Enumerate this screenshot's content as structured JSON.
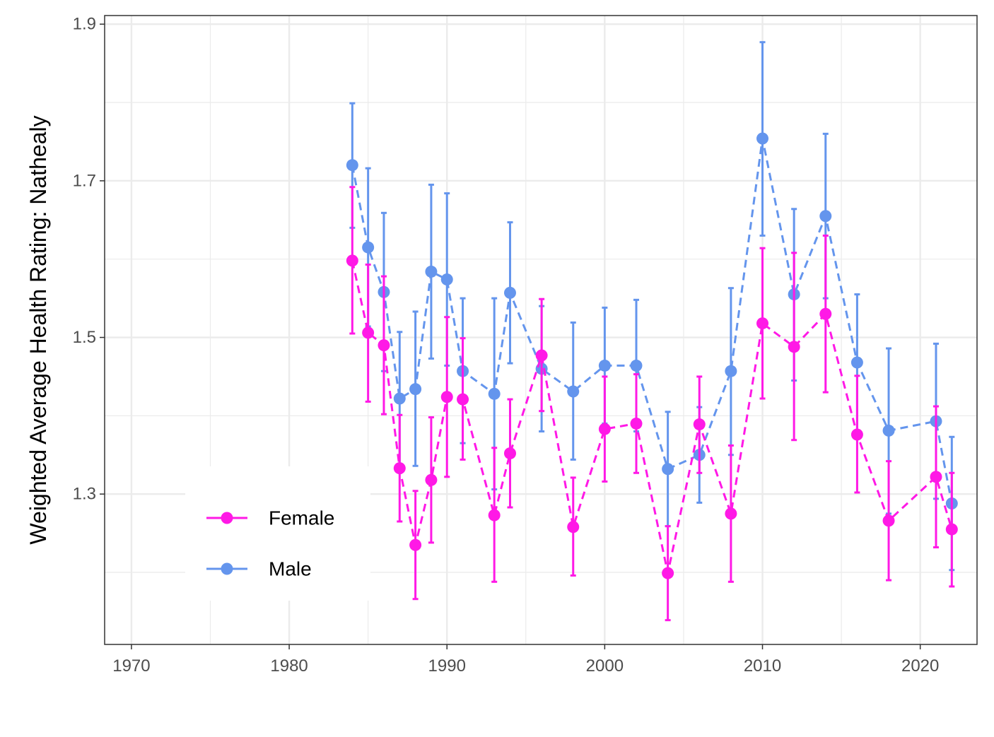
{
  "chart_data": {
    "type": "line",
    "title": "",
    "xlabel": "",
    "ylabel": "Weighted Average Health Rating: Nathealy",
    "xlim": [
      1969.4,
      1974.9
    ],
    "ylim": [
      1.108,
      1.911
    ],
    "x_ticks": [
      "1970",
      "1980",
      "1990",
      "2000",
      "2010",
      "2020"
    ],
    "y_ticks": [
      "1.3",
      "1.5",
      "1.7",
      "1.9"
    ],
    "grid": true,
    "legend_position": "bottom-left",
    "series": [
      {
        "name": "Female",
        "color": "#ff19e6",
        "line_style": "dashed",
        "points": [
          {
            "x": 1984,
            "y": 1.598,
            "lo": 1.505,
            "hi": 1.692
          },
          {
            "x": 1985,
            "y": 1.506,
            "lo": 1.418,
            "hi": 1.593
          },
          {
            "x": 1986,
            "y": 1.49,
            "lo": 1.402,
            "hi": 1.578
          },
          {
            "x": 1987,
            "y": 1.333,
            "lo": 1.265,
            "hi": 1.401
          },
          {
            "x": 1988,
            "y": 1.235,
            "lo": 1.166,
            "hi": 1.304
          },
          {
            "x": 1989,
            "y": 1.318,
            "lo": 1.238,
            "hi": 1.398
          },
          {
            "x": 1990,
            "y": 1.424,
            "lo": 1.322,
            "hi": 1.526
          },
          {
            "x": 1991,
            "y": 1.421,
            "lo": 1.344,
            "hi": 1.499
          },
          {
            "x": 1993,
            "y": 1.273,
            "lo": 1.188,
            "hi": 1.359
          },
          {
            "x": 1994,
            "y": 1.352,
            "lo": 1.283,
            "hi": 1.421
          },
          {
            "x": 1996,
            "y": 1.477,
            "lo": 1.406,
            "hi": 1.549
          },
          {
            "x": 1998,
            "y": 1.258,
            "lo": 1.196,
            "hi": 1.321
          },
          {
            "x": 2000,
            "y": 1.383,
            "lo": 1.316,
            "hi": 1.45
          },
          {
            "x": 2002,
            "y": 1.39,
            "lo": 1.327,
            "hi": 1.453
          },
          {
            "x": 2004,
            "y": 1.199,
            "lo": 1.139,
            "hi": 1.259
          },
          {
            "x": 2006,
            "y": 1.389,
            "lo": 1.327,
            "hi": 1.45
          },
          {
            "x": 2008,
            "y": 1.275,
            "lo": 1.188,
            "hi": 1.362
          },
          {
            "x": 2010,
            "y": 1.518,
            "lo": 1.422,
            "hi": 1.614
          },
          {
            "x": 2012,
            "y": 1.488,
            "lo": 1.369,
            "hi": 1.608
          },
          {
            "x": 2014,
            "y": 1.53,
            "lo": 1.43,
            "hi": 1.63
          },
          {
            "x": 2016,
            "y": 1.376,
            "lo": 1.302,
            "hi": 1.451
          },
          {
            "x": 2018,
            "y": 1.266,
            "lo": 1.19,
            "hi": 1.342
          },
          {
            "x": 2021,
            "y": 1.322,
            "lo": 1.232,
            "hi": 1.412
          },
          {
            "x": 2022,
            "y": 1.255,
            "lo": 1.182,
            "hi": 1.327
          }
        ]
      },
      {
        "name": "Male",
        "color": "#6495ed",
        "line_style": "dashed",
        "points": [
          {
            "x": 1984,
            "y": 1.72,
            "lo": 1.64,
            "hi": 1.799
          },
          {
            "x": 1985,
            "y": 1.615,
            "lo": 1.514,
            "hi": 1.716
          },
          {
            "x": 1986,
            "y": 1.558,
            "lo": 1.457,
            "hi": 1.659
          },
          {
            "x": 1987,
            "y": 1.422,
            "lo": 1.337,
            "hi": 1.507
          },
          {
            "x": 1988,
            "y": 1.434,
            "lo": 1.336,
            "hi": 1.533
          },
          {
            "x": 1989,
            "y": 1.584,
            "lo": 1.473,
            "hi": 1.695
          },
          {
            "x": 1990,
            "y": 1.574,
            "lo": 1.464,
            "hi": 1.684
          },
          {
            "x": 1991,
            "y": 1.457,
            "lo": 1.365,
            "hi": 1.55
          },
          {
            "x": 1993,
            "y": 1.428,
            "lo": 1.306,
            "hi": 1.55
          },
          {
            "x": 1994,
            "y": 1.557,
            "lo": 1.467,
            "hi": 1.647
          },
          {
            "x": 1996,
            "y": 1.46,
            "lo": 1.38,
            "hi": 1.54
          },
          {
            "x": 1998,
            "y": 1.431,
            "lo": 1.344,
            "hi": 1.519
          },
          {
            "x": 2000,
            "y": 1.464,
            "lo": 1.39,
            "hi": 1.538
          },
          {
            "x": 2002,
            "y": 1.464,
            "lo": 1.38,
            "hi": 1.548
          },
          {
            "x": 2004,
            "y": 1.332,
            "lo": 1.259,
            "hi": 1.405
          },
          {
            "x": 2006,
            "y": 1.35,
            "lo": 1.289,
            "hi": 1.411
          },
          {
            "x": 2008,
            "y": 1.457,
            "lo": 1.35,
            "hi": 1.563
          },
          {
            "x": 2010,
            "y": 1.754,
            "lo": 1.63,
            "hi": 1.877
          },
          {
            "x": 2012,
            "y": 1.555,
            "lo": 1.445,
            "hi": 1.664
          },
          {
            "x": 2014,
            "y": 1.655,
            "lo": 1.55,
            "hi": 1.76
          },
          {
            "x": 2016,
            "y": 1.468,
            "lo": 1.38,
            "hi": 1.555
          },
          {
            "x": 2018,
            "y": 1.381,
            "lo": 1.275,
            "hi": 1.486
          },
          {
            "x": 2021,
            "y": 1.393,
            "lo": 1.294,
            "hi": 1.492
          },
          {
            "x": 2022,
            "y": 1.288,
            "lo": 1.203,
            "hi": 1.373
          }
        ]
      }
    ]
  }
}
